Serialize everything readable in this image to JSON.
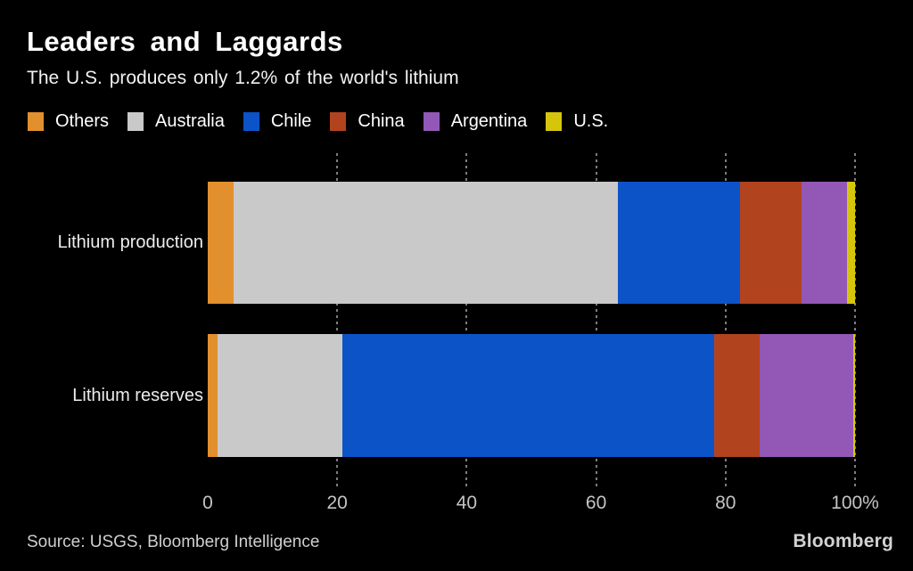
{
  "header": {
    "title": "Leaders and Laggards",
    "subtitle": "The U.S. produces only 1.2% of the world's lithium"
  },
  "chart_data": {
    "type": "bar",
    "orientation": "horizontal",
    "stacked": true,
    "title": "Leaders and Laggards",
    "subtitle": "The U.S. produces only 1.2% of the world's lithium",
    "categories": [
      "Lithium production",
      "Lithium reserves"
    ],
    "series": [
      {
        "name": "Others",
        "color": "#e2902e",
        "values": [
          4.0,
          1.5
        ]
      },
      {
        "name": "Australia",
        "color": "#c9c9c9",
        "values": [
          59.4,
          19.3
        ]
      },
      {
        "name": "Chile",
        "color": "#0d53c8",
        "values": [
          18.8,
          57.4
        ]
      },
      {
        "name": "China",
        "color": "#b2431f",
        "values": [
          9.5,
          7.0
        ]
      },
      {
        "name": "Argentina",
        "color": "#9358b6",
        "values": [
          7.1,
          14.5
        ]
      },
      {
        "name": "U.S.",
        "color": "#d6c60b",
        "values": [
          1.2,
          0.3
        ]
      }
    ],
    "xlim": [
      0,
      100
    ],
    "x_ticks": [
      {
        "value": 0,
        "label": "0"
      },
      {
        "value": 20,
        "label": "20"
      },
      {
        "value": 40,
        "label": "40"
      },
      {
        "value": 60,
        "label": "60"
      },
      {
        "value": 80,
        "label": "80"
      },
      {
        "value": 100,
        "label": "100%"
      }
    ],
    "grid": "dashed-vertical",
    "legend_position": "top",
    "unit": "percent of world total"
  },
  "footer": {
    "source": "Source: USGS, Bloomberg Intelligence",
    "logo": "Bloomberg"
  }
}
